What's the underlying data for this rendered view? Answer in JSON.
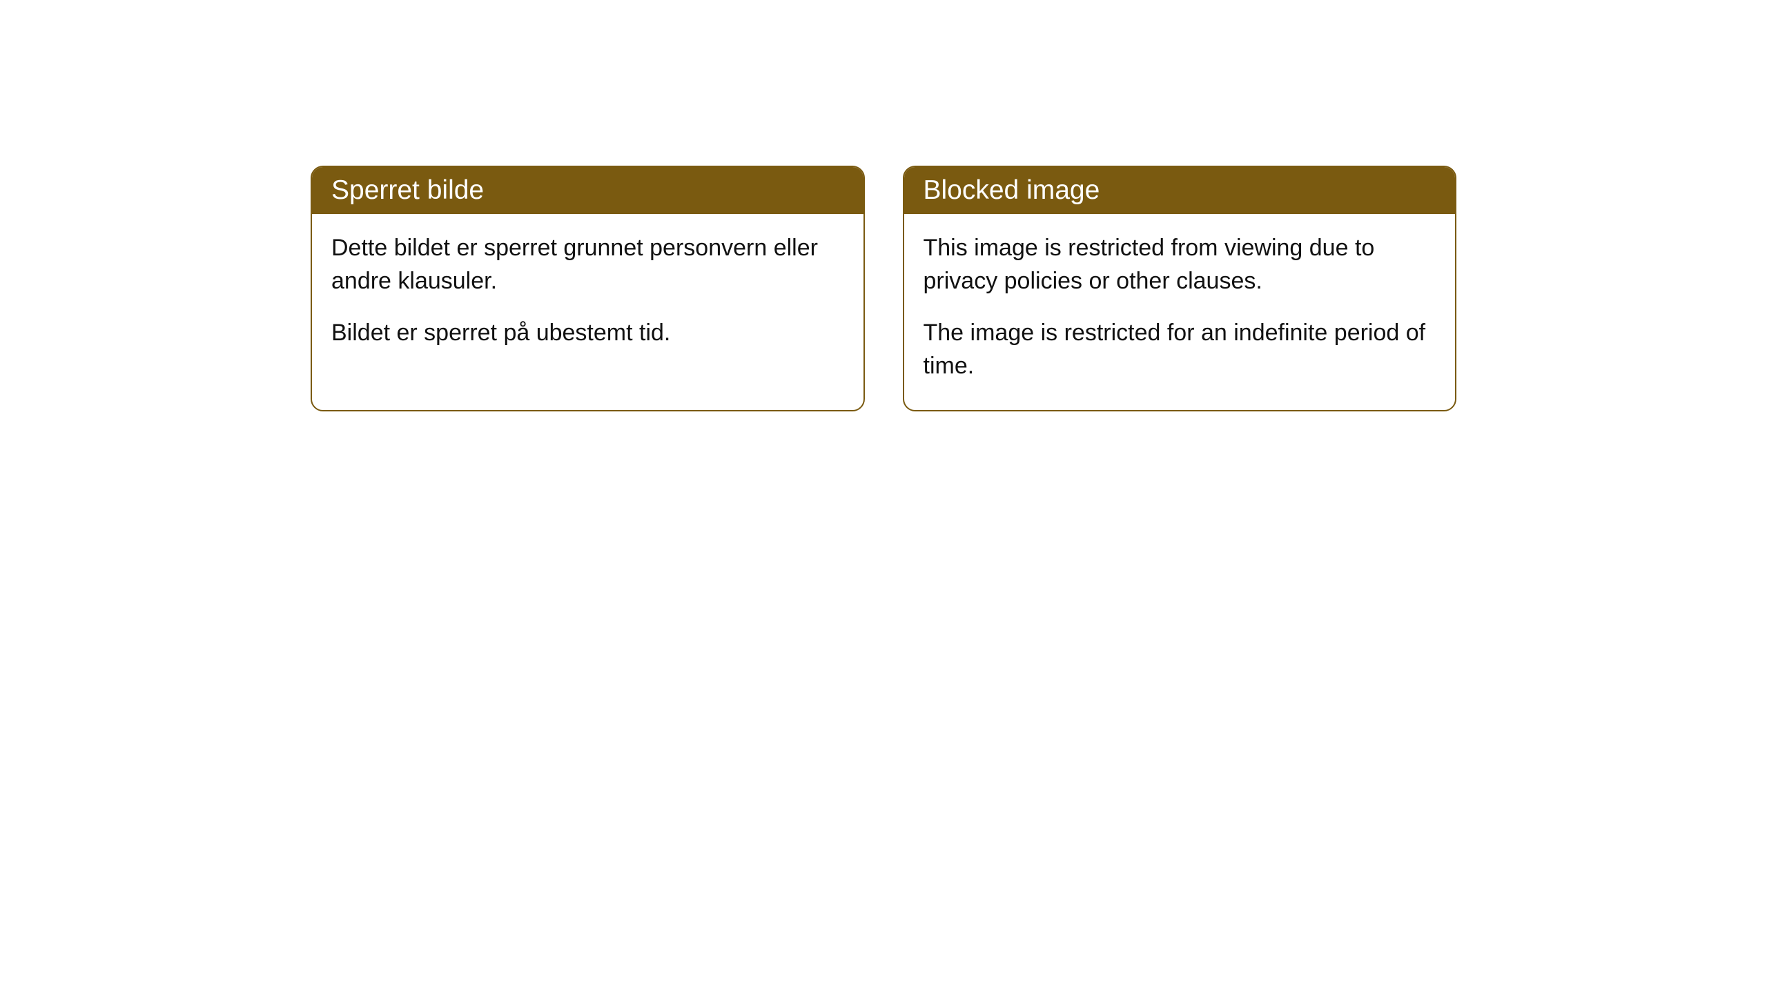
{
  "cards": [
    {
      "title": "Sperret bilde",
      "paragraph1": "Dette bildet er sperret grunnet personvern eller andre klausuler.",
      "paragraph2": "Bildet er sperret på ubestemt tid."
    },
    {
      "title": "Blocked image",
      "paragraph1": "This image is restricted from viewing due to privacy policies or other clauses.",
      "paragraph2": "The image is restricted for an indefinite period of time."
    }
  ],
  "styling": {
    "header_bg_color": "#7a5a10",
    "header_text_color": "#ffffff",
    "border_color": "#7a5a10",
    "body_bg_color": "#ffffff",
    "body_text_color": "#111111",
    "border_radius": 18,
    "title_fontsize": 39,
    "body_fontsize": 34
  }
}
